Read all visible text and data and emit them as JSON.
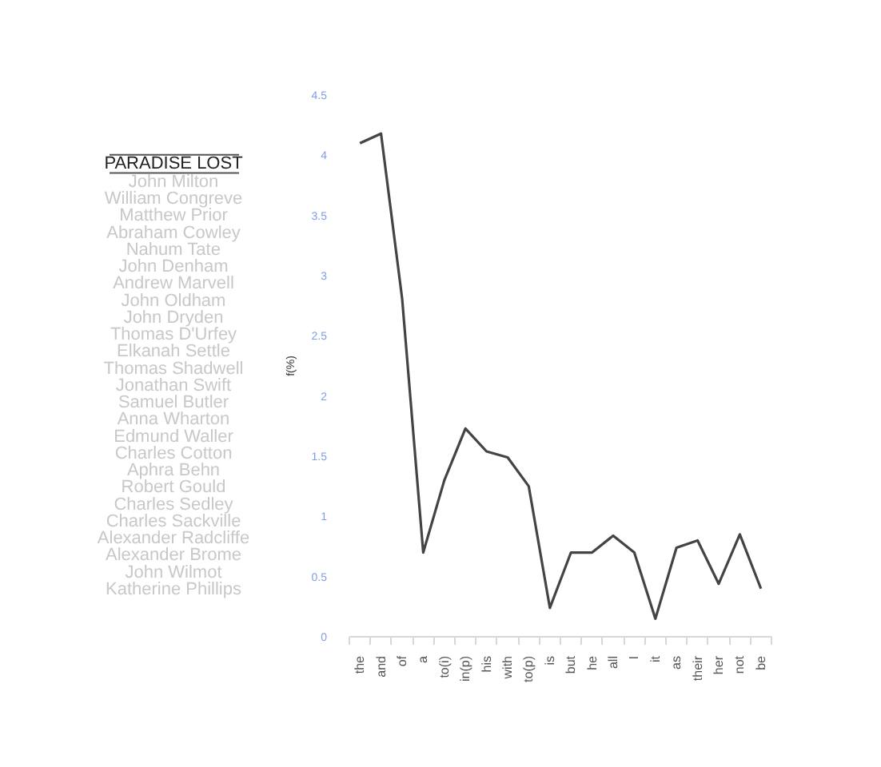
{
  "chart_data": {
    "type": "line",
    "title": "PARADISE LOST",
    "annotations": [
      "John Milton",
      "William Congreve",
      "Matthew Prior",
      "Abraham Cowley",
      "Nahum Tate",
      "John Denham",
      "Andrew Marvell",
      "John Oldham",
      "John Dryden",
      "Thomas D'Urfey",
      "Elkanah Settle",
      "Thomas Shadwell",
      "Jonathan Swift",
      "Samuel Butler",
      "Anna Wharton",
      "Edmund Waller",
      "Charles Cotton",
      "Aphra Behn",
      "Robert Gould",
      "Charles Sedley",
      "Charles Sackville",
      "Alexander Radcliffe",
      "Alexander Brome",
      "John Wilmot",
      "Katherine Phillips"
    ],
    "ylabel": "f(%)",
    "categories": [
      "the",
      "and",
      "of",
      "a",
      "to(i)",
      "in(p)",
      "his",
      "with",
      "to(p)",
      "is",
      "but",
      "he",
      "all",
      "I",
      "it",
      "as",
      "their",
      "her",
      "not",
      "be"
    ],
    "series": [
      {
        "color": "#444444",
        "values": [
          4.1,
          4.18,
          2.81,
          0.7,
          1.3,
          1.73,
          1.54,
          1.49,
          1.25,
          0.24,
          0.7,
          0.7,
          0.84,
          0.7,
          0.15,
          0.74,
          0.8,
          0.44,
          0.85,
          0.4
        ]
      }
    ],
    "ylim": [
      0,
      4.5
    ],
    "yticks": [
      0,
      0.5,
      1,
      1.5,
      2,
      2.5,
      3,
      3.5,
      4,
      4.5
    ],
    "grid": false,
    "marker": "none",
    "line_style": "solid"
  }
}
